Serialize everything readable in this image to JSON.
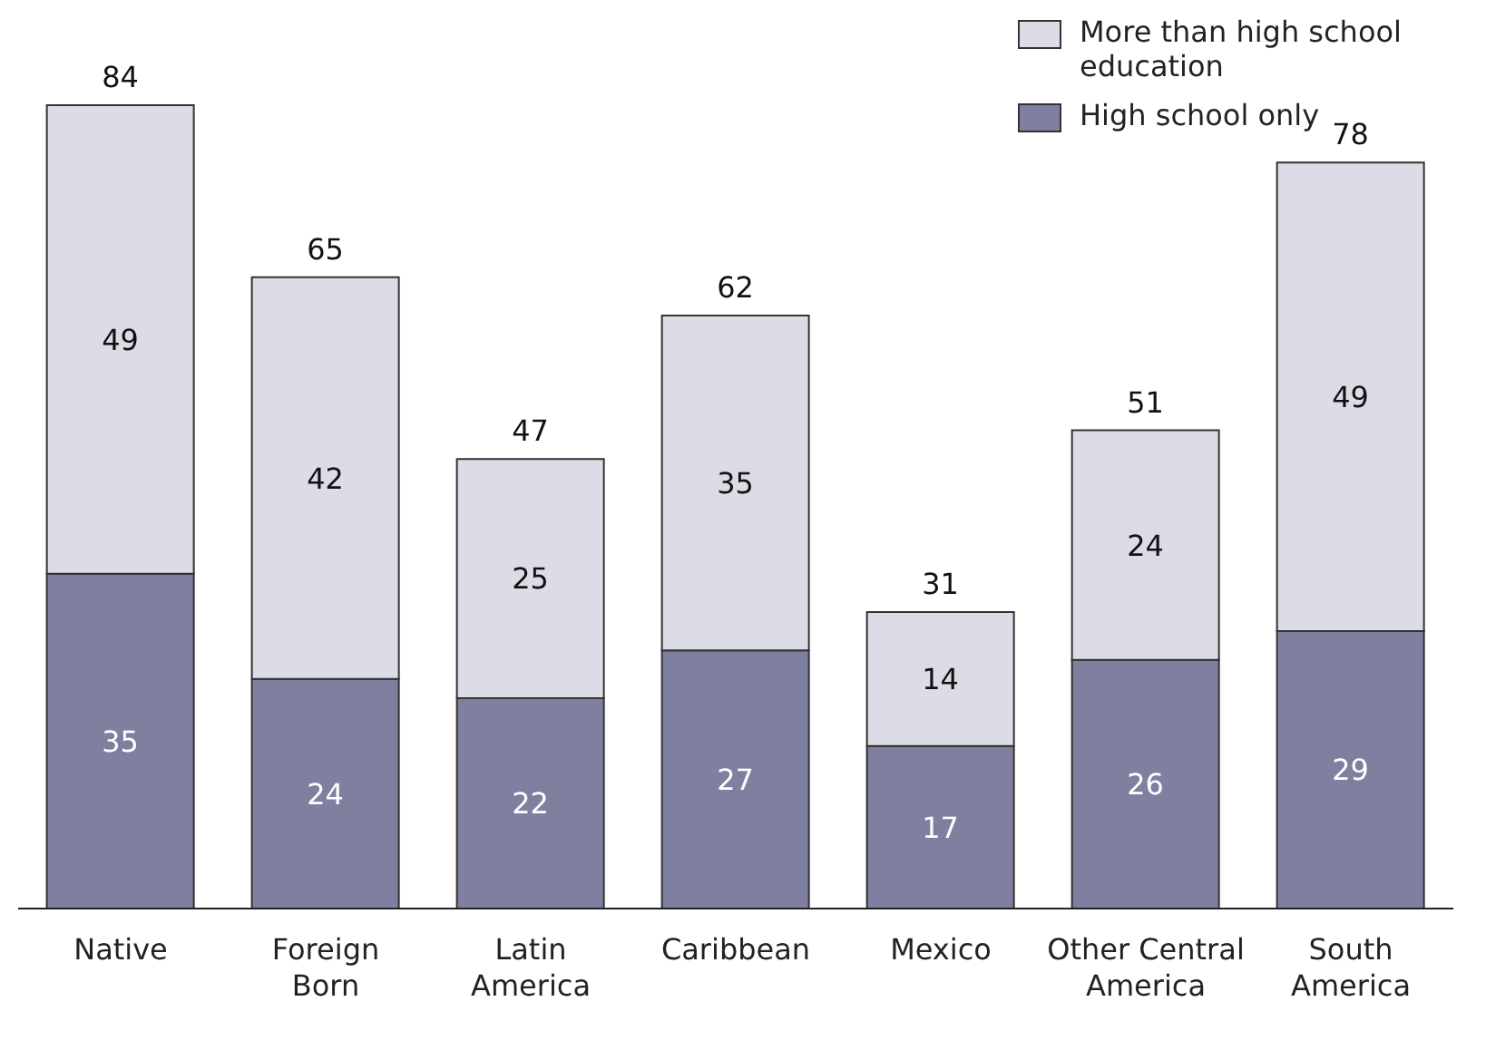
{
  "chart_data": {
    "type": "bar",
    "stacked": true,
    "data_labels": true,
    "legend": "top right",
    "categories": [
      "Native",
      "Foreign\nBorn",
      "Latin\nAmerica",
      "Caribbean",
      "Mexico",
      "Other Central\nAmerica",
      "South\nAmerica"
    ],
    "series": [
      {
        "name": "High school only",
        "color": "#7f7fa0",
        "values": [
          35,
          24,
          22,
          27,
          17,
          26,
          29
        ]
      },
      {
        "name": "More than high school education",
        "color": "#dcdce6",
        "values": [
          49,
          42,
          25,
          35,
          14,
          24,
          49
        ]
      }
    ],
    "totals": [
      "84",
      "65",
      "47",
      "62",
      "31",
      "51",
      "78"
    ]
  }
}
